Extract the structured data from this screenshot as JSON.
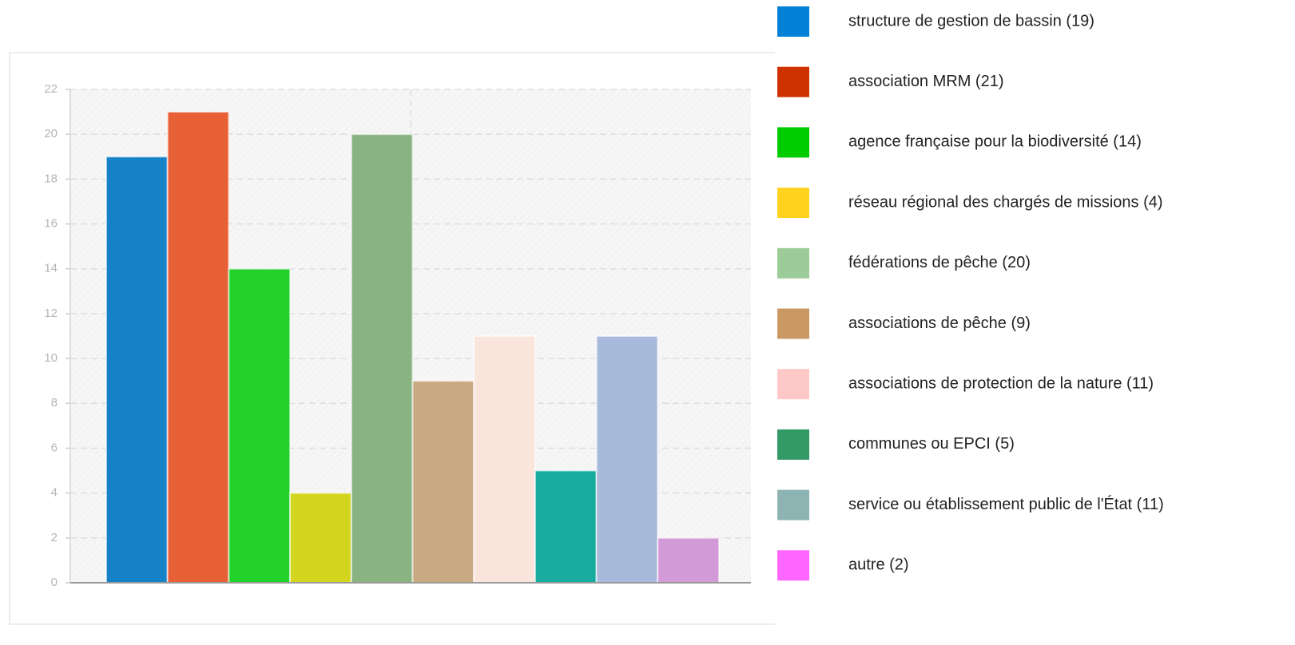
{
  "chart_data": {
    "type": "bar",
    "categories": [
      "structure de gestion de bassin (19)",
      "association MRM (21)",
      "agence française pour la biodiversité (14)",
      "réseau régional des chargés de missions (4)",
      "fédérations de pêche (20)",
      "associations de pêche (9)",
      "associations de protection de la nature (11)",
      "communes ou EPCI (5)",
      "service ou établissement public de l'État (11)",
      "autre (2)"
    ],
    "values": [
      19,
      21,
      14,
      4,
      20,
      9,
      11,
      5,
      11,
      2
    ],
    "colors": [
      "#1582c8",
      "#e86036",
      "#22d12a",
      "#d4d51e",
      "#89b380",
      "#c8a982",
      "#fae5dd",
      "#18aba0",
      "#a8badb",
      "#d39ad8"
    ],
    "legend_colors": [
      "#0281d6",
      "#cf3200",
      "#00cc00",
      "#ffd21f",
      "#9ccd98",
      "#cb9864",
      "#ffc8c8",
      "#339966",
      "#8db3b3",
      "#ff66ff"
    ],
    "ylim": [
      0,
      22
    ],
    "yticks": [
      0,
      2,
      4,
      6,
      8,
      10,
      12,
      14,
      16,
      18,
      20,
      22
    ],
    "grid": true,
    "legend": "right"
  }
}
